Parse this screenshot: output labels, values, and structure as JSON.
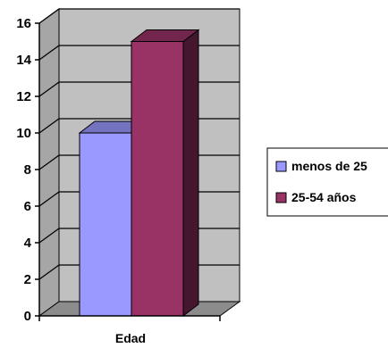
{
  "chart_data": {
    "type": "bar",
    "categories": [
      "Edad"
    ],
    "series": [
      {
        "name": "menos de 25",
        "values": [
          10
        ],
        "color": "#9999ff"
      },
      {
        "name": "25-54 años",
        "values": [
          15
        ],
        "color": "#993366"
      }
    ],
    "ylim": [
      0,
      16
    ],
    "yticks": [
      0,
      2,
      4,
      6,
      8,
      10,
      12,
      14,
      16
    ],
    "grid": true,
    "legend": "right",
    "style": "3d-clustered-column",
    "wall_color": "#c0c0c0"
  }
}
